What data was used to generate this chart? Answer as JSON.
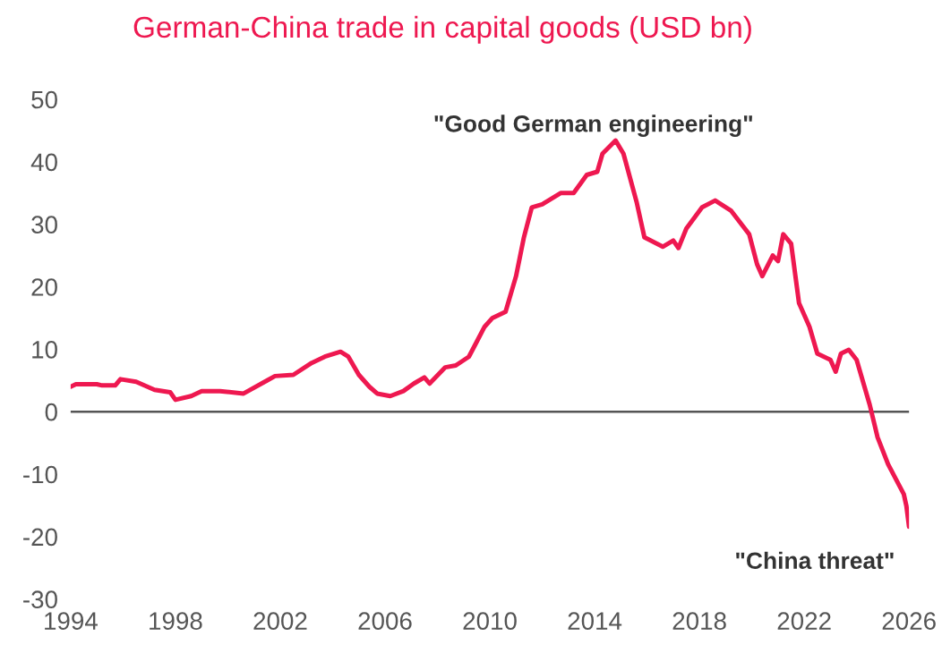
{
  "chart_data": {
    "type": "line",
    "title": "German-China trade in capital goods (USD bn)",
    "annotations": [
      "\"Good German engineering\"",
      "\"China threat\""
    ],
    "series": [
      {
        "color": "#ee1850",
        "x": [
          1994.0,
          1994.2,
          1995.0,
          1995.2,
          1995.7,
          1995.9,
          1996.5,
          1997.2,
          1997.8,
          1998.0,
          1998.6,
          1999.0,
          1999.7,
          2000.6,
          2001.5,
          2001.8,
          2002.5,
          2003.2,
          2003.7,
          2004.3,
          2004.6,
          2005.0,
          2005.4,
          2005.7,
          2006.2,
          2006.7,
          2007.1,
          2007.5,
          2007.7,
          2008.3,
          2008.7,
          2009.2,
          2009.5,
          2009.8,
          2010.1,
          2010.6,
          2011.0,
          2011.3,
          2011.6,
          2012.0,
          2012.7,
          2013.2,
          2013.7,
          2014.1,
          2014.3,
          2014.8,
          2015.1,
          2015.6,
          2015.9,
          2016.6,
          2017.0,
          2017.2,
          2017.5,
          2018.1,
          2018.6,
          2019.2,
          2019.9,
          2020.2,
          2020.4,
          2020.8,
          2021.0,
          2021.2,
          2021.5,
          2021.8,
          2022.2,
          2022.5,
          2023.0,
          2023.2,
          2023.4,
          2023.7,
          2024.0,
          2024.5,
          2024.8,
          2025.2,
          2025.8,
          2025.9,
          2026.0
        ],
        "values": [
          4.0,
          4.4,
          4.4,
          4.2,
          4.2,
          5.2,
          4.8,
          3.5,
          3.1,
          1.9,
          2.5,
          3.3,
          3.3,
          2.9,
          5.0,
          5.7,
          5.9,
          7.8,
          8.8,
          9.6,
          8.8,
          5.9,
          4.0,
          2.9,
          2.5,
          3.3,
          4.5,
          5.5,
          4.5,
          7.1,
          7.4,
          8.8,
          11.2,
          13.6,
          15.0,
          16.0,
          21.7,
          27.9,
          32.7,
          33.2,
          35.0,
          35.0,
          37.9,
          38.4,
          41.3,
          43.4,
          41.3,
          33.6,
          27.9,
          26.4,
          27.4,
          26.2,
          29.3,
          32.7,
          33.8,
          32.2,
          28.4,
          23.6,
          21.7,
          25.0,
          24.1,
          28.4,
          26.9,
          17.4,
          13.6,
          9.3,
          8.3,
          6.4,
          9.3,
          9.9,
          8.3,
          1.1,
          -4.1,
          -8.4,
          -13.2,
          -15.1,
          -18.4
        ]
      }
    ],
    "xlim": [
      1994,
      2026
    ],
    "xticks": [
      1994,
      1998,
      2002,
      2006,
      2010,
      2014,
      2018,
      2022,
      2026
    ],
    "ylim": [
      -30,
      50
    ],
    "yticks": [
      -30,
      -20,
      -10,
      0,
      10,
      20,
      30,
      40,
      50
    ],
    "ref_lines": [
      {
        "axis": "y",
        "value": 0,
        "color": "#555555"
      }
    ],
    "grid": false,
    "legend": false,
    "marker": "none",
    "line_style": "solid"
  }
}
